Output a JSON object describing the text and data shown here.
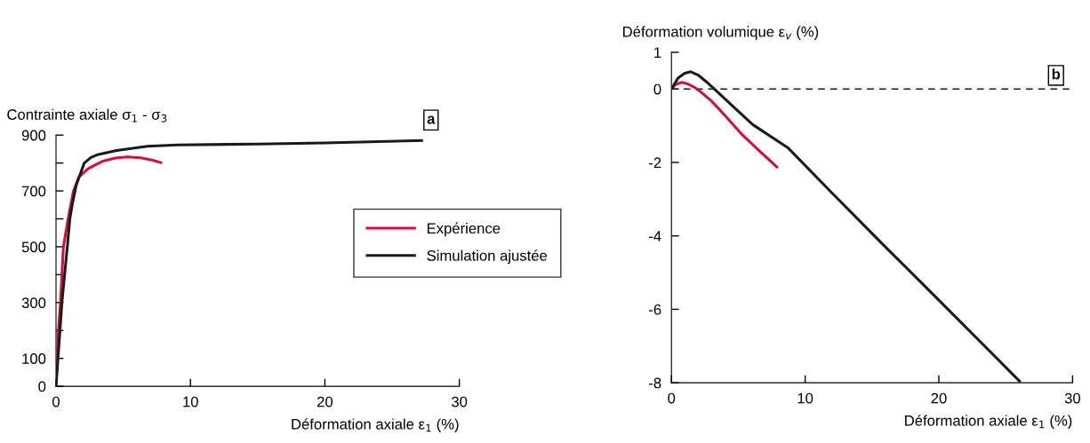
{
  "chart_data": [
    {
      "type": "line",
      "xlabel": "Déformation axiale ε$_{1}$ (%)",
      "ylabel": "Contrainte axiale σ$_{1}$ - σ$_{3}$",
      "annotations": [
        "a"
      ],
      "xlim": [
        0,
        30
      ],
      "xticks": [
        0,
        10,
        20,
        30
      ],
      "ylim": [
        0,
        900
      ],
      "yticks": [
        0,
        100,
        {
          "value": 200,
          "label": null
        },
        300,
        {
          "value": 400,
          "label": null
        },
        500,
        {
          "value": 600,
          "label": null
        },
        700,
        {
          "value": 800,
          "label": null
        },
        900
      ],
      "grid": false,
      "legend": "right",
      "marker": "none",
      "line_style": "solid",
      "series": [
        {
          "name": "Expérience",
          "color": "#d0103a",
          "x": [
            0,
            0.15,
            0.33,
            0.55,
            0.9,
            1.3,
            1.7,
            2.4,
            3.5,
            4.4,
            5.3,
            6.3,
            7.2,
            7.9
          ],
          "values": [
            0,
            180,
            300,
            500,
            600,
            700,
            750,
            780,
            807,
            818,
            822,
            819,
            810,
            800
          ]
        },
        {
          "name": "Simulation ajustée",
          "color": "#1a1a1a",
          "x": [
            0,
            0.44,
            0.84,
            1.03,
            1.2,
            1.5,
            2.1,
            2.6,
            3.1,
            4.5,
            6.8,
            9,
            15,
            20,
            27.3
          ],
          "values": [
            0,
            300,
            500,
            600,
            650,
            720,
            800,
            820,
            830,
            845,
            860,
            865,
            868,
            872,
            881
          ]
        }
      ]
    },
    {
      "type": "line",
      "xlabel": "Déformation axiale ε$_{1}$ (%)",
      "ylabel": "Déformation volumique ε$_{v}$ (%)",
      "annotations": [
        "b"
      ],
      "xlim": [
        0,
        30
      ],
      "xticks": [
        0,
        10,
        20,
        30
      ],
      "ylim": [
        -8,
        1
      ],
      "yticks": [
        -8,
        -6,
        -4,
        -2,
        0,
        1
      ],
      "grid": false,
      "marker": "none",
      "line_style": "solid",
      "ref_lines": [
        {
          "axis": "y",
          "value": 0,
          "label": null,
          "color": "#1a1a1a",
          "line_style": "dashed"
        }
      ],
      "series": [
        {
          "color": "#d0103a",
          "x": [
            0,
            0.3,
            0.77,
            1.2,
            1.66,
            2.2,
            3,
            4,
            5.2,
            6.5,
            7.96
          ],
          "values": [
            0,
            0.12,
            0.18,
            0.14,
            0.06,
            -0.08,
            -0.33,
            -0.72,
            -1.21,
            -1.66,
            -2.15
          ]
        },
        {
          "color": "#1a1a1a",
          "x": [
            0,
            0.5,
            1,
            1.44,
            2,
            2.6,
            3.2,
            4.5,
            6.08,
            8.74,
            12,
            16,
            20,
            24,
            26.1
          ],
          "values": [
            0,
            0.3,
            0.43,
            0.47,
            0.38,
            0.2,
            0,
            -0.44,
            -0.97,
            -1.61,
            -2.83,
            -4.3,
            -5.75,
            -7.21,
            -7.98
          ]
        }
      ]
    }
  ]
}
